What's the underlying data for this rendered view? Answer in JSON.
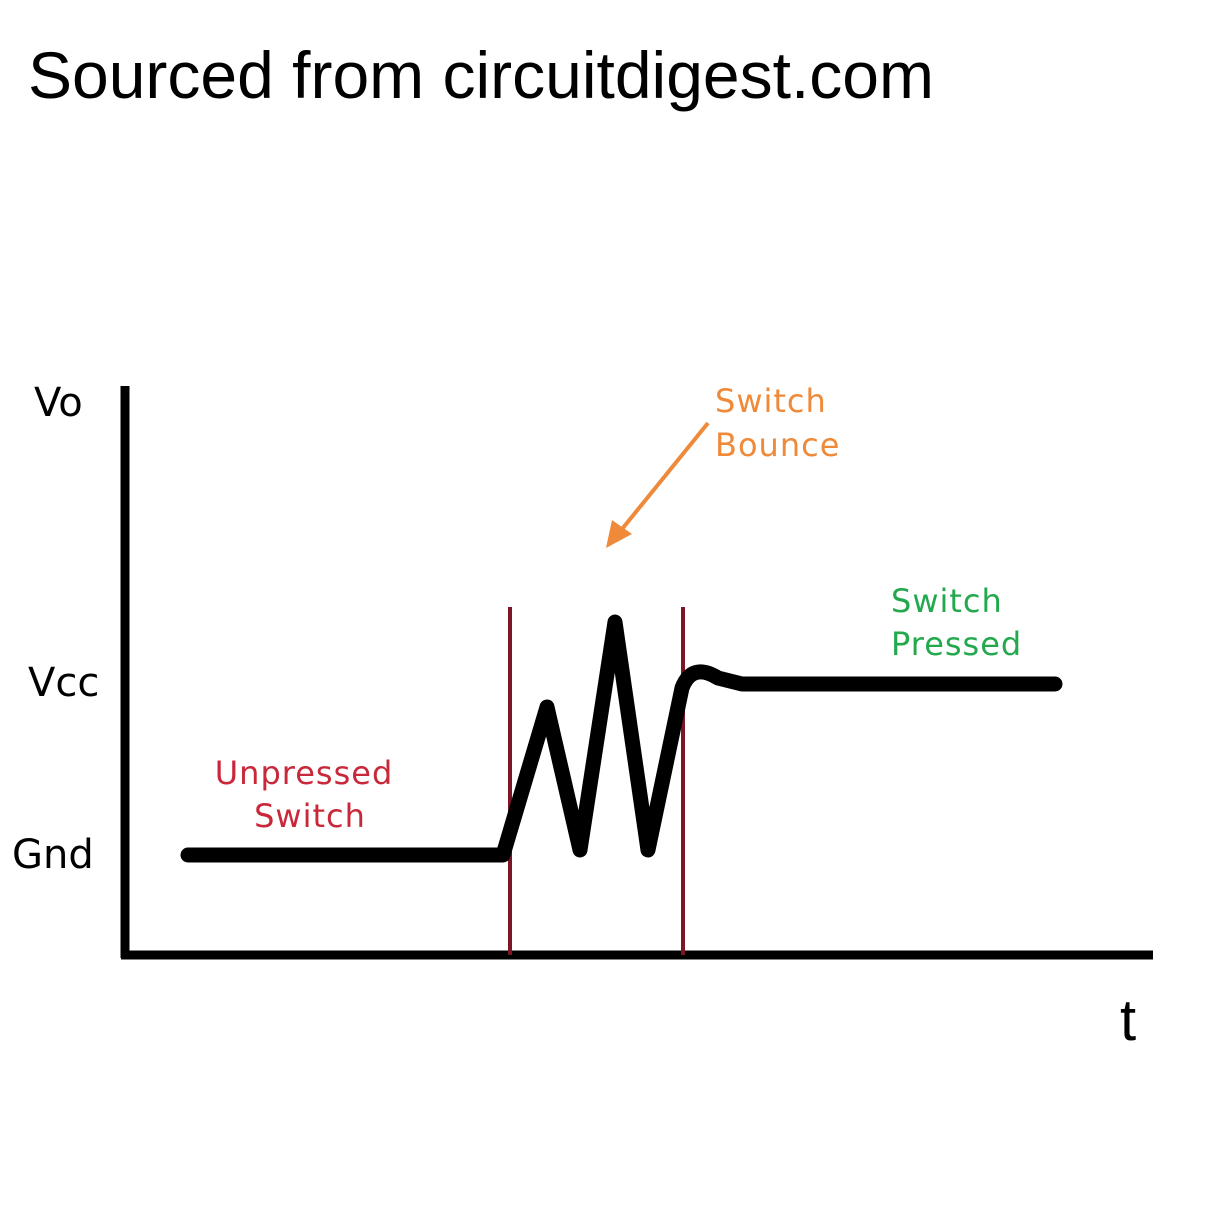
{
  "source": "Sourced from circuitdigest.com",
  "axes": {
    "y_label": "Vo",
    "x_label": "t",
    "levels": [
      "Vcc",
      "Gnd"
    ]
  },
  "annotations": {
    "unpressed": [
      "Unpressed",
      "Switch"
    ],
    "bounce": [
      "Switch",
      "Bounce"
    ],
    "pressed": [
      "Switch",
      "Pressed"
    ]
  },
  "colors": {
    "unpressed": "#c8283a",
    "bounce": "#ee8a3a",
    "pressed": "#23a84e",
    "boundary": "#7a1626",
    "signal": "#000000"
  }
}
